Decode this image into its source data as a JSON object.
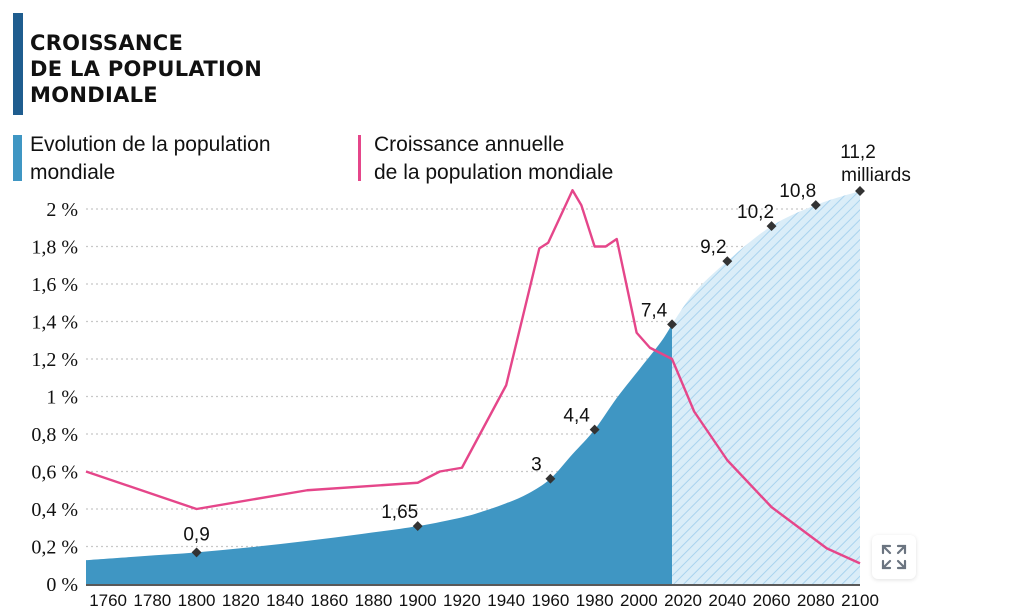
{
  "title": {
    "line1": "CROISSANCE",
    "line2": "DE LA POPULATION",
    "line3": "MONDIALE"
  },
  "legend": {
    "population": {
      "line1": "Evolution de la population",
      "line2": "mondiale",
      "color": "#3f96c3"
    },
    "growth": {
      "line1": "Croissance annuelle",
      "line2": "de la population mondiale",
      "color": "#e5468a"
    }
  },
  "colors": {
    "title_bar": "#1f5d8f",
    "population_fill": "#3f96c3",
    "projection_fill": "#daedf8",
    "projection_hatch": "#a9d3ee",
    "growth_line": "#e5468a",
    "grid": "#c8c8c8",
    "marker": "#333333"
  },
  "expand_button": {
    "icon": "expand-icon"
  },
  "chart_data": {
    "type": "area",
    "title": "CROISSANCE DE LA POPULATION MONDIALE",
    "xlabel": "",
    "ylabel": "",
    "xlim": [
      1750,
      2100
    ],
    "ylim": [
      0,
      2
    ],
    "grid": true,
    "x_ticks": [
      1760,
      1780,
      1800,
      1820,
      1840,
      1860,
      1880,
      1900,
      1920,
      1940,
      1960,
      1980,
      2000,
      2020,
      2040,
      2060,
      2080,
      2100
    ],
    "y_ticks": [
      {
        "value": 0,
        "label": "0 %"
      },
      {
        "value": 0.2,
        "label": "0,2 %"
      },
      {
        "value": 0.4,
        "label": "0,4 %"
      },
      {
        "value": 0.6,
        "label": "0,6 %"
      },
      {
        "value": 0.8,
        "label": "0,8 %"
      },
      {
        "value": 1.0,
        "label": "1 %"
      },
      {
        "value": 1.2,
        "label": "1,2 %"
      },
      {
        "value": 1.4,
        "label": "1,4 %"
      },
      {
        "value": 1.6,
        "label": "1,6 %"
      },
      {
        "value": 1.8,
        "label": "1,8 %"
      },
      {
        "value": 2.0,
        "label": "2 %"
      }
    ],
    "projection_start": 2015,
    "series": [
      {
        "name": "Evolution de la population mondiale",
        "type": "area",
        "unit": "milliards",
        "ylim": [
          0,
          11.2
        ],
        "points": [
          {
            "x": 1750,
            "y": 0.68
          },
          {
            "x": 1775,
            "y": 0.79
          },
          {
            "x": 1800,
            "y": 0.9
          },
          {
            "x": 1825,
            "y": 1.05
          },
          {
            "x": 1850,
            "y": 1.23
          },
          {
            "x": 1875,
            "y": 1.43
          },
          {
            "x": 1900,
            "y": 1.65
          },
          {
            "x": 1920,
            "y": 1.9
          },
          {
            "x": 1930,
            "y": 2.08
          },
          {
            "x": 1940,
            "y": 2.3
          },
          {
            "x": 1950,
            "y": 2.58
          },
          {
            "x": 1960,
            "y": 3.0
          },
          {
            "x": 1970,
            "y": 3.7
          },
          {
            "x": 1980,
            "y": 4.4
          },
          {
            "x": 1990,
            "y": 5.3
          },
          {
            "x": 2000,
            "y": 6.1
          },
          {
            "x": 2010,
            "y": 6.9
          },
          {
            "x": 2015,
            "y": 7.4
          },
          {
            "x": 2025,
            "y": 8.3
          },
          {
            "x": 2040,
            "y": 9.2
          },
          {
            "x": 2060,
            "y": 10.2
          },
          {
            "x": 2080,
            "y": 10.8
          },
          {
            "x": 2100,
            "y": 11.2
          }
        ],
        "labeled_points": [
          {
            "x": 1800,
            "y": 0.9,
            "label": "0,9"
          },
          {
            "x": 1900,
            "y": 1.65,
            "label": "1,65"
          },
          {
            "x": 1960,
            "y": 3.0,
            "label": "3"
          },
          {
            "x": 1980,
            "y": 4.4,
            "label": "4,4"
          },
          {
            "x": 2015,
            "y": 7.4,
            "label": "7,4"
          },
          {
            "x": 2040,
            "y": 9.2,
            "label": "9,2"
          },
          {
            "x": 2060,
            "y": 10.2,
            "label": "10,2"
          },
          {
            "x": 2080,
            "y": 10.8,
            "label": "10,8"
          },
          {
            "x": 2100,
            "y": 11.2,
            "label": "11,2",
            "sublabel": "milliards"
          }
        ]
      },
      {
        "name": "Croissance annuelle de la population mondiale",
        "type": "line",
        "unit": "%",
        "points": [
          {
            "x": 1750,
            "y": 0.6
          },
          {
            "x": 1800,
            "y": 0.4
          },
          {
            "x": 1850,
            "y": 0.5
          },
          {
            "x": 1900,
            "y": 0.54
          },
          {
            "x": 1910,
            "y": 0.6
          },
          {
            "x": 1920,
            "y": 0.62
          },
          {
            "x": 1940,
            "y": 1.06
          },
          {
            "x": 1955,
            "y": 1.79
          },
          {
            "x": 1959,
            "y": 1.82
          },
          {
            "x": 1970,
            "y": 2.1
          },
          {
            "x": 1974,
            "y": 2.02
          },
          {
            "x": 1980,
            "y": 1.8
          },
          {
            "x": 1985,
            "y": 1.8
          },
          {
            "x": 1990,
            "y": 1.84
          },
          {
            "x": 1999,
            "y": 1.34
          },
          {
            "x": 2005,
            "y": 1.26
          },
          {
            "x": 2015,
            "y": 1.2
          },
          {
            "x": 2025,
            "y": 0.92
          },
          {
            "x": 2040,
            "y": 0.66
          },
          {
            "x": 2060,
            "y": 0.41
          },
          {
            "x": 2085,
            "y": 0.19
          },
          {
            "x": 2100,
            "y": 0.11
          }
        ]
      }
    ]
  }
}
